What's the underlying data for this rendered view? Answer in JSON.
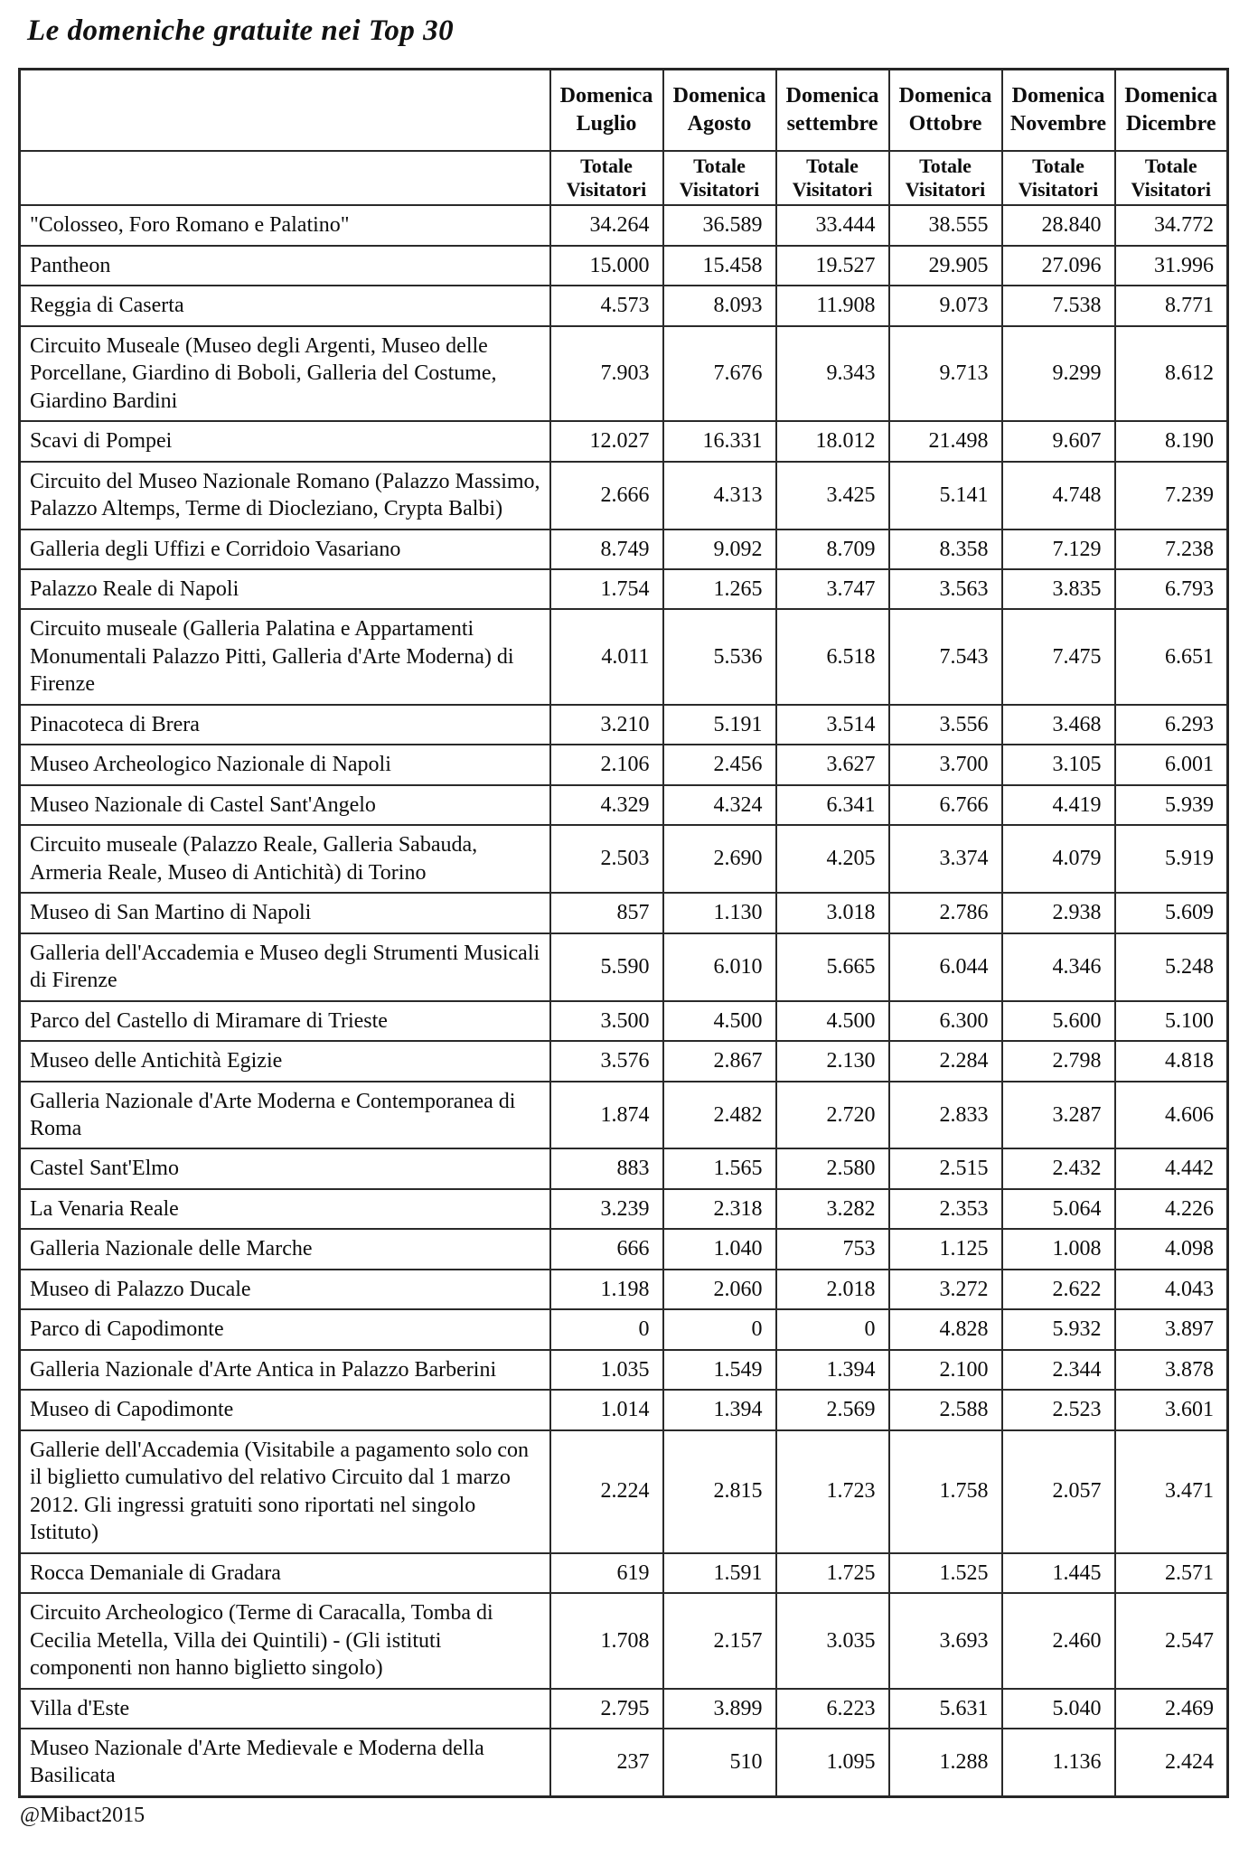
{
  "page": {
    "title": "Le domeniche gratuite nei Top 30",
    "credit": "@Mibact2015"
  },
  "chart_data": {
    "type": "table",
    "title": "Le domeniche gratuite nei Top 30",
    "column_group_headers": [
      "Domenica Luglio",
      "Domenica Agosto",
      "Domenica settembre",
      "Domenica Ottobre",
      "Domenica Novembre",
      "Domenica Dicembre"
    ],
    "subheader_label": "Totale Visitatori",
    "rows": [
      {
        "label": "\"Colosseo, Foro Romano e Palatino\"",
        "values": [
          "34.264",
          "36.589",
          "33.444",
          "38.555",
          "28.840",
          "34.772"
        ]
      },
      {
        "label": "Pantheon",
        "values": [
          "15.000",
          "15.458",
          "19.527",
          "29.905",
          "27.096",
          "31.996"
        ]
      },
      {
        "label": "Reggia di Caserta",
        "values": [
          "4.573",
          "8.093",
          "11.908",
          "9.073",
          "7.538",
          "8.771"
        ]
      },
      {
        "label": "Circuito Museale (Museo degli Argenti, Museo delle Porcellane, Giardino di Boboli, Galleria del Costume, Giardino Bardini",
        "values": [
          "7.903",
          "7.676",
          "9.343",
          "9.713",
          "9.299",
          "8.612"
        ]
      },
      {
        "label": "Scavi di Pompei",
        "values": [
          "12.027",
          "16.331",
          "18.012",
          "21.498",
          "9.607",
          "8.190"
        ]
      },
      {
        "label": "Circuito del Museo Nazionale Romano (Palazzo Massimo, Palazzo Altemps, Terme di Diocleziano, Crypta Balbi)",
        "values": [
          "2.666",
          "4.313",
          "3.425",
          "5.141",
          "4.748",
          "7.239"
        ]
      },
      {
        "label": "Galleria degli Uffizi e Corridoio Vasariano",
        "values": [
          "8.749",
          "9.092",
          "8.709",
          "8.358",
          "7.129",
          "7.238"
        ]
      },
      {
        "label": "Palazzo Reale di Napoli",
        "values": [
          "1.754",
          "1.265",
          "3.747",
          "3.563",
          "3.835",
          "6.793"
        ]
      },
      {
        "label": "Circuito museale (Galleria Palatina e Appartamenti Monumentali Palazzo Pitti, Galleria d'Arte Moderna) di Firenze",
        "values": [
          "4.011",
          "5.536",
          "6.518",
          "7.543",
          "7.475",
          "6.651"
        ]
      },
      {
        "label": "Pinacoteca di Brera",
        "values": [
          "3.210",
          "5.191",
          "3.514",
          "3.556",
          "3.468",
          "6.293"
        ]
      },
      {
        "label": "Museo Archeologico Nazionale di Napoli",
        "values": [
          "2.106",
          "2.456",
          "3.627",
          "3.700",
          "3.105",
          "6.001"
        ]
      },
      {
        "label": "Museo Nazionale di Castel Sant'Angelo",
        "values": [
          "4.329",
          "4.324",
          "6.341",
          "6.766",
          "4.419",
          "5.939"
        ]
      },
      {
        "label": "Circuito museale (Palazzo Reale, Galleria Sabauda, Armeria Reale,  Museo di Antichità) di Torino",
        "values": [
          "2.503",
          "2.690",
          "4.205",
          "3.374",
          "4.079",
          "5.919"
        ]
      },
      {
        "label": "Museo di San Martino di Napoli",
        "values": [
          "857",
          "1.130",
          "3.018",
          "2.786",
          "2.938",
          "5.609"
        ]
      },
      {
        "label": "Galleria dell'Accademia e Museo degli Strumenti Musicali di Firenze",
        "values": [
          "5.590",
          "6.010",
          "5.665",
          "6.044",
          "4.346",
          "5.248"
        ]
      },
      {
        "label": "Parco del Castello di Miramare di Trieste",
        "values": [
          "3.500",
          "4.500",
          "4.500",
          "6.300",
          "5.600",
          "5.100"
        ]
      },
      {
        "label": "Museo delle Antichità Egizie",
        "values": [
          "3.576",
          "2.867",
          "2.130",
          "2.284",
          "2.798",
          "4.818"
        ]
      },
      {
        "label": "Galleria Nazionale d'Arte Moderna e Contemporanea di Roma",
        "values": [
          "1.874",
          "2.482",
          "2.720",
          "2.833",
          "3.287",
          "4.606"
        ]
      },
      {
        "label": "Castel Sant'Elmo",
        "values": [
          "883",
          "1.565",
          "2.580",
          "2.515",
          "2.432",
          "4.442"
        ]
      },
      {
        "label": "La Venaria Reale",
        "values": [
          "3.239",
          "2.318",
          "3.282",
          "2.353",
          "5.064",
          "4.226"
        ]
      },
      {
        "label": "Galleria Nazionale delle Marche",
        "values": [
          "666",
          "1.040",
          "753",
          "1.125",
          "1.008",
          "4.098"
        ]
      },
      {
        "label": "Museo di Palazzo Ducale",
        "values": [
          "1.198",
          "2.060",
          "2.018",
          "3.272",
          "2.622",
          "4.043"
        ]
      },
      {
        "label": "Parco di Capodimonte",
        "values": [
          "0",
          "0",
          "0",
          "4.828",
          "5.932",
          "3.897"
        ]
      },
      {
        "label": "Galleria Nazionale d'Arte Antica in Palazzo Barberini",
        "values": [
          "1.035",
          "1.549",
          "1.394",
          "2.100",
          "2.344",
          "3.878"
        ]
      },
      {
        "label": "Museo di Capodimonte",
        "values": [
          "1.014",
          "1.394",
          "2.569",
          "2.588",
          "2.523",
          "3.601"
        ]
      },
      {
        "label": "Gallerie dell'Accademia (Visitabile a pagamento solo con il biglietto cumulativo del relativo Circuito  dal 1 marzo 2012. Gli ingressi gratuiti sono riportati nel singolo Istituto)",
        "values": [
          "2.224",
          "2.815",
          "1.723",
          "1.758",
          "2.057",
          "3.471"
        ]
      },
      {
        "label": "Rocca Demaniale di Gradara",
        "values": [
          "619",
          "1.591",
          "1.725",
          "1.525",
          "1.445",
          "2.571"
        ]
      },
      {
        "label": "Circuito Archeologico (Terme di Caracalla, Tomba di Cecilia Metella, Villa dei Quintili) - (Gli istituti componenti non hanno biglietto singolo)",
        "values": [
          "1.708",
          "2.157",
          "3.035",
          "3.693",
          "2.460",
          "2.547"
        ]
      },
      {
        "label": "Villa d'Este",
        "values": [
          "2.795",
          "3.899",
          "6.223",
          "5.631",
          "5.040",
          "2.469"
        ]
      },
      {
        "label": "Museo Nazionale d'Arte Medievale e Moderna della Basilicata",
        "values": [
          "237",
          "510",
          "1.095",
          "1.288",
          "1.136",
          "2.424"
        ]
      }
    ]
  }
}
